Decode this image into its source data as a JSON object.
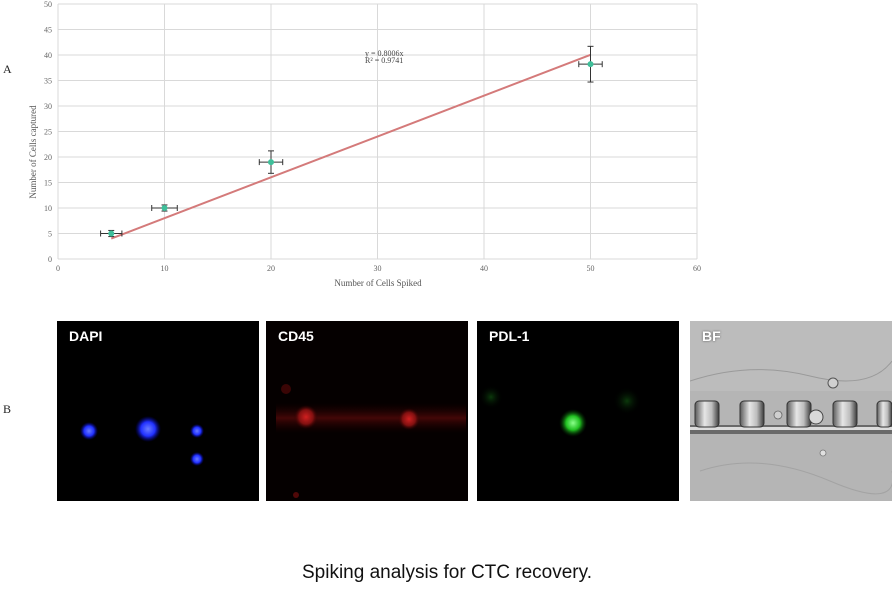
{
  "panels": {
    "a_label": "A",
    "b_label": "B"
  },
  "chart_data": {
    "type": "scatter",
    "xlabel": "Number of Cells Spiked",
    "ylabel": "Number of Cells captured",
    "xlim": [
      0,
      60
    ],
    "ylim": [
      0,
      50
    ],
    "x_ticks": [
      "0",
      "10",
      "20",
      "30",
      "40",
      "50",
      "60"
    ],
    "y_ticks": [
      "0",
      "5",
      "10",
      "15",
      "20",
      "25",
      "30",
      "35",
      "40",
      "45",
      "50"
    ],
    "grid": true,
    "series": [
      {
        "points": [
          {
            "x": 5,
            "y": 5,
            "xerr": 1.0,
            "yerr": 0.6
          },
          {
            "x": 10,
            "y": 10,
            "xerr": 1.2,
            "yerr": 0.6
          },
          {
            "x": 20,
            "y": 19,
            "xerr": 1.1,
            "yerr": 2.2
          },
          {
            "x": 50,
            "y": 38.2,
            "xerr": 1.1,
            "yerr": 3.5
          }
        ]
      }
    ],
    "trendline": {
      "slope": 0.8006,
      "x_range": [
        5,
        50
      ]
    },
    "annotation": {
      "equation": "y = 0.8006x",
      "r2": "R² = 0.9741"
    },
    "colors": {
      "marker": "#3fbf9a",
      "trend": "#d47a7a",
      "errorbar": "#333333",
      "grid": "#d9d9d9"
    }
  },
  "micrographs": [
    {
      "label": "DAPI"
    },
    {
      "label": "CD45"
    },
    {
      "label": "PDL-1"
    },
    {
      "label": "BF"
    }
  ],
  "caption": "Spiking analysis for CTC recovery."
}
